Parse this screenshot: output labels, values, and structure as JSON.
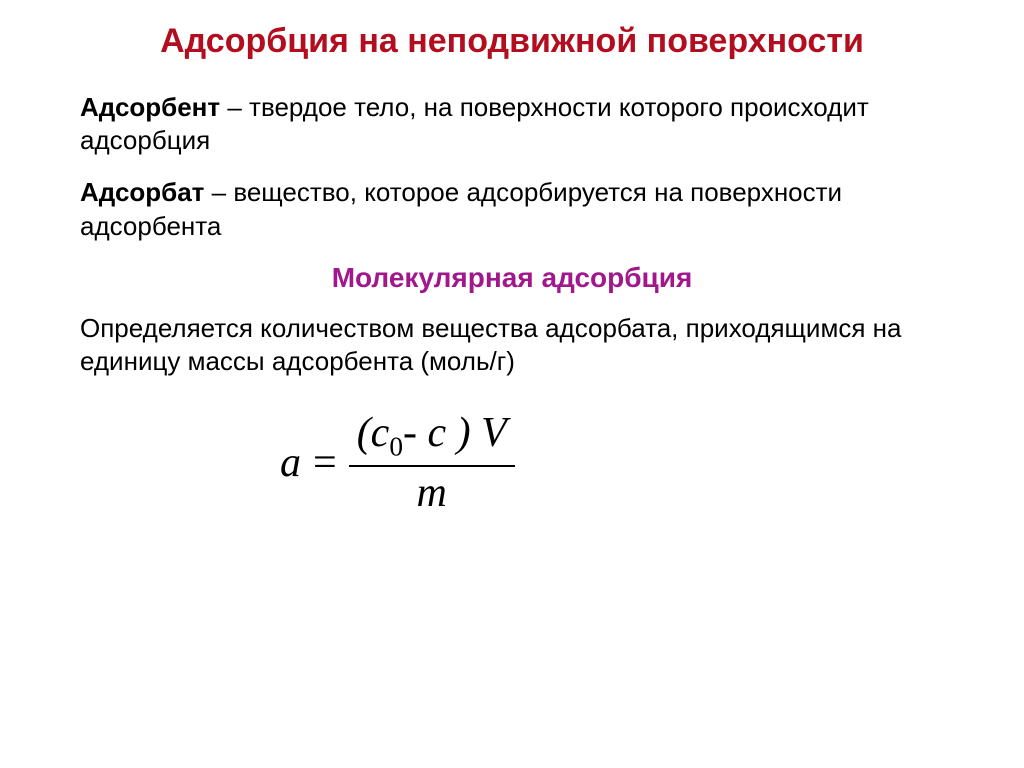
{
  "title": {
    "text": "Адсорбция на неподвижной поверхности",
    "color": "#b20e1f",
    "fontsize": 34
  },
  "body": {
    "color": "#000000",
    "fontsize": 26,
    "paragraphs": [
      {
        "term": "Адсорбент",
        "def": " – твердое тело, на поверхности которого происходит адсорбция"
      },
      {
        "term": "Адсорбат",
        "def": " – вещество, которое адсорбируется на поверхности адсорбента"
      }
    ]
  },
  "subheading": {
    "text": "Молекулярная адсорбция",
    "color": "#a0188c",
    "fontsize": 28
  },
  "description": {
    "text": "Определяется количеством вещества адсорбата, приходящимся на единицу массы адсорбента (моль/г)",
    "color": "#000000",
    "fontsize": 26
  },
  "formula": {
    "lhs": "a",
    "eq": "=",
    "num_open": "(с",
    "num_sub": "0",
    "num_mid": "- с ) V",
    "den": "m",
    "color": "#000000",
    "fontsize": 42,
    "line_color": "#000000"
  }
}
